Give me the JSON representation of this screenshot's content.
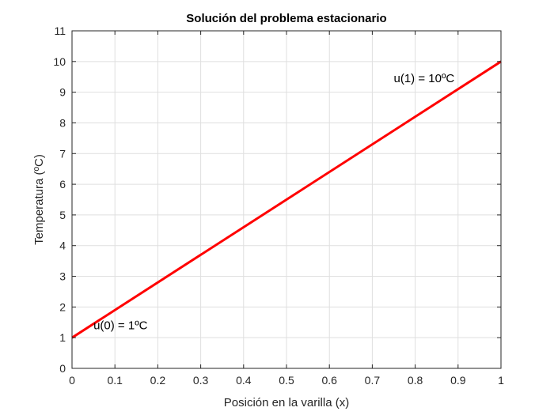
{
  "chart_data": {
    "type": "line",
    "title": "Solución del problema estacionario",
    "xlabel": "Posición en la varilla (x)",
    "ylabel": "Temperatura (ºC)",
    "xlim": [
      0,
      1
    ],
    "ylim": [
      0,
      11
    ],
    "xticks": [
      0,
      0.1,
      0.2,
      0.3,
      0.4,
      0.5,
      0.6,
      0.7,
      0.8,
      0.9,
      1
    ],
    "xtick_labels": [
      "0",
      "0.1",
      "0.2",
      "0.3",
      "0.4",
      "0.5",
      "0.6",
      "0.7",
      "0.8",
      "0.9",
      "1"
    ],
    "yticks": [
      0,
      1,
      2,
      3,
      4,
      5,
      6,
      7,
      8,
      9,
      10,
      11
    ],
    "ytick_labels": [
      "0",
      "1",
      "2",
      "3",
      "4",
      "5",
      "6",
      "7",
      "8",
      "9",
      "10",
      "11"
    ],
    "grid": true,
    "series": [
      {
        "x": [
          0,
          1
        ],
        "y": [
          1,
          10
        ],
        "color": "#ff0000"
      }
    ],
    "annotations": [
      {
        "text": "u(0) = 1ºC",
        "x": 0.05,
        "y": 1.4
      },
      {
        "text": "u(1) = 10ºC",
        "x": 0.75,
        "y": 9.45
      }
    ]
  }
}
